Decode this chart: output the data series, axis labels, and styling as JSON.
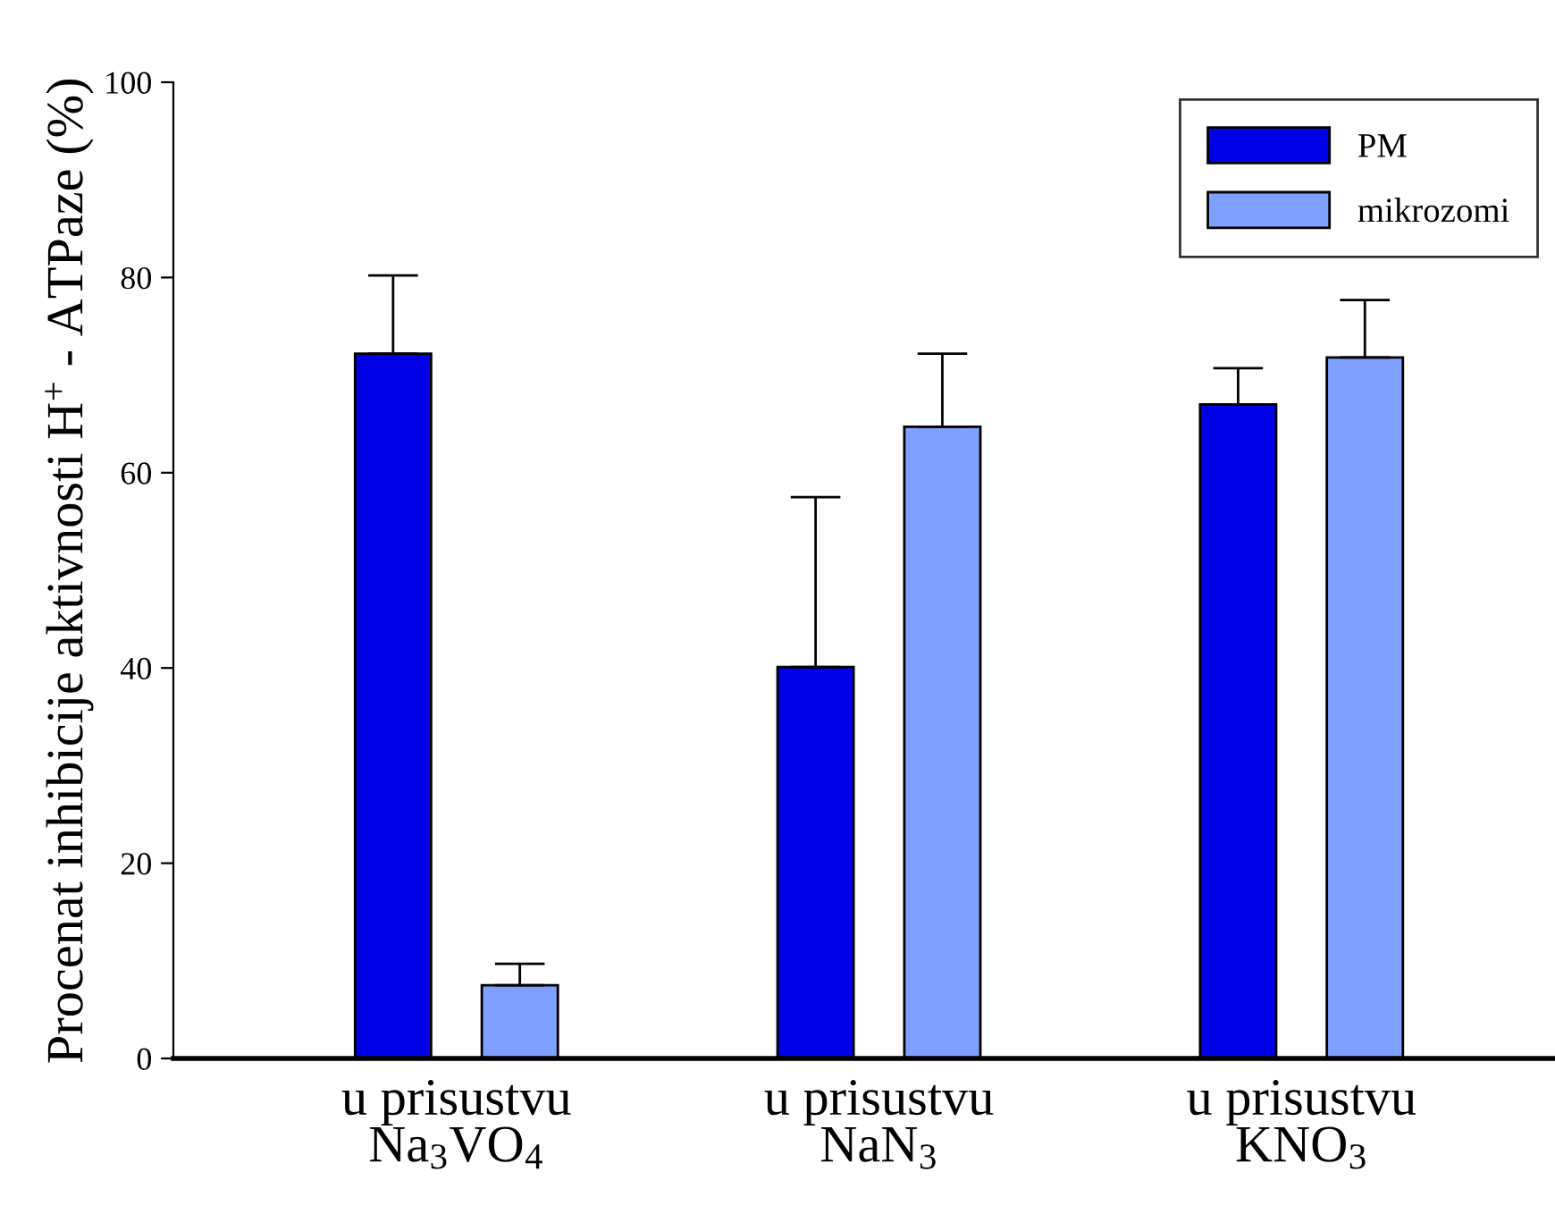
{
  "chart_data": {
    "type": "bar",
    "ylabel": "Procenat inhibicije aktivnosti H$^{+}$ - ATPaze (%)",
    "categories": [
      "u prisustvu\nNa$_{3}$VO$_{4}$",
      "u prisustvu\nNaN$_{3}$",
      "u prisustvu\nKNO$_{3}$"
    ],
    "series": [
      {
        "name": "PM",
        "color": "#0000e6",
        "values": [
          72.2,
          40.1,
          67.0
        ],
        "errors": [
          [
            72.2,
            80.2
          ],
          [
            40.1,
            57.5
          ],
          [
            67.0,
            70.7
          ]
        ]
      },
      {
        "name": "mikrozomi",
        "color": "#80a0ff",
        "values": [
          7.5,
          64.7,
          71.8
        ],
        "errors": [
          [
            7.5,
            9.7
          ],
          [
            64.7,
            72.2
          ],
          [
            71.8,
            77.7
          ]
        ]
      }
    ],
    "ylim": [
      0,
      100
    ],
    "yticks": [
      0,
      20,
      40,
      60,
      80,
      100
    ],
    "grid": false,
    "legend": "top right"
  }
}
